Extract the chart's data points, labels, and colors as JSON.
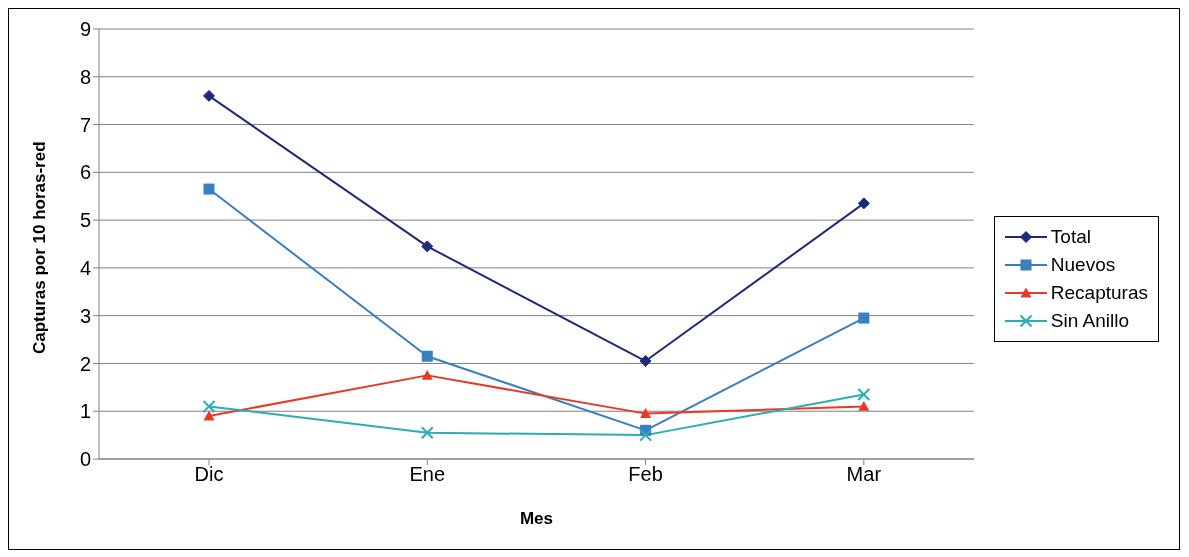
{
  "chart_data": {
    "type": "line",
    "xlabel": "Mes",
    "ylabel": "Capturas por 10 horas-red",
    "categories": [
      "Dic",
      "Ene",
      "Feb",
      "Mar"
    ],
    "series": [
      {
        "name": "Total",
        "color": "#1f2a78",
        "marker": "diamond",
        "values": [
          7.6,
          4.45,
          2.05,
          5.35
        ]
      },
      {
        "name": "Nuevos",
        "color": "#3a7fc0",
        "marker": "square",
        "values": [
          5.65,
          2.15,
          0.6,
          2.95
        ]
      },
      {
        "name": "Recapturas",
        "color": "#e8382a",
        "marker": "triangle",
        "values": [
          0.9,
          1.75,
          0.95,
          1.1
        ]
      },
      {
        "name": "Sin Anillo",
        "color": "#2aaeb0",
        "marker": "cross",
        "values": [
          1.1,
          0.55,
          0.5,
          1.35
        ]
      }
    ],
    "ylim": [
      0,
      9
    ],
    "yticks": [
      0,
      1,
      2,
      3,
      4,
      5,
      6,
      7,
      8,
      9
    ],
    "grid": "y",
    "legend": "right",
    "line_style": "solid"
  }
}
